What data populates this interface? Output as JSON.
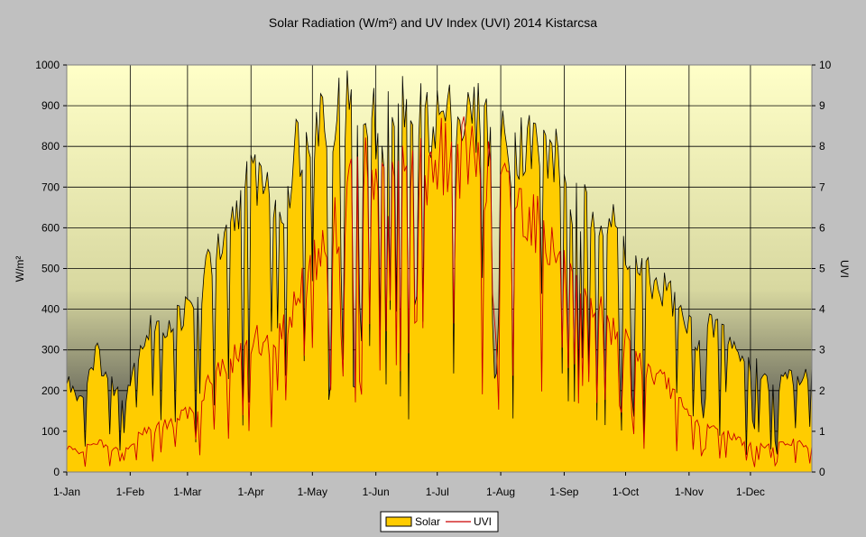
{
  "chart_data": {
    "type": "area",
    "title": "Solar Radiation (W/m²) and UV Index (UVI) 2014 Kistarcsa",
    "ylabel_left": "W/m²",
    "ylabel_right": "UVI",
    "xlabel": "",
    "ylim_left": [
      0,
      1000
    ],
    "ylim_right": [
      0,
      10
    ],
    "yticks_left": [
      "0",
      "100",
      "200",
      "300",
      "400",
      "500",
      "600",
      "700",
      "800",
      "900",
      "1000"
    ],
    "yticks_right": [
      "0",
      "1",
      "2",
      "3",
      "4",
      "5",
      "6",
      "7",
      "8",
      "9",
      "10"
    ],
    "x_day_range": [
      1,
      365
    ],
    "x_tick_days": [
      1,
      32,
      60,
      91,
      121,
      152,
      182,
      213,
      244,
      274,
      305,
      335
    ],
    "x_tick_labels": [
      "1-Jan",
      "1-Feb",
      "1-Mar",
      "1-Apr",
      "1-May",
      "1-Jun",
      "1-Jul",
      "1-Aug",
      "1-Sep",
      "1-Oct",
      "1-Nov",
      "1-Dec"
    ],
    "legend": [
      "Solar",
      "UVI"
    ],
    "colors": {
      "solar_fill": "#ffcc00",
      "solar_line": "#000000",
      "uvi_line": "#cc0000",
      "page_bg": "#c0c0c0",
      "plot_top": "#ffffc8",
      "plot_bottom": "#505040"
    },
    "series": [
      {
        "name": "Solar",
        "axis": "left",
        "x": [
          1,
          8,
          15,
          22,
          29,
          36,
          43,
          50,
          57,
          64,
          71,
          78,
          85,
          92,
          99,
          106,
          113,
          120,
          127,
          134,
          141,
          148,
          155,
          162,
          169,
          176,
          183,
          190,
          197,
          204,
          211,
          218,
          225,
          232,
          239,
          246,
          253,
          260,
          267,
          274,
          281,
          288,
          295,
          302,
          309,
          316,
          323,
          330,
          337,
          344,
          351,
          358,
          365
        ],
        "values": [
          240,
          200,
          320,
          240,
          190,
          330,
          390,
          390,
          420,
          430,
          560,
          580,
          700,
          790,
          780,
          690,
          860,
          920,
          950,
          960,
          970,
          940,
          880,
          970,
          960,
          920,
          940,
          930,
          930,
          930,
          880,
          850,
          870,
          860,
          840,
          720,
          680,
          700,
          650,
          600,
          530,
          490,
          480,
          400,
          360,
          380,
          380,
          300,
          280,
          230,
          240,
          260,
          260
        ]
      },
      {
        "name": "UVI",
        "axis": "right",
        "x": [
          1,
          8,
          15,
          22,
          29,
          36,
          43,
          50,
          57,
          64,
          71,
          78,
          85,
          92,
          99,
          106,
          113,
          120,
          127,
          134,
          141,
          148,
          155,
          162,
          169,
          176,
          183,
          190,
          197,
          204,
          211,
          218,
          225,
          232,
          239,
          246,
          253,
          260,
          267,
          274,
          281,
          288,
          295,
          302,
          309,
          316,
          323,
          330,
          337,
          344,
          351,
          358,
          365
        ],
        "values": [
          0.6,
          0.5,
          0.8,
          0.6,
          0.5,
          0.9,
          1.1,
          1.2,
          1.4,
          1.6,
          2.4,
          2.6,
          3.0,
          3.4,
          3.2,
          3.6,
          4.3,
          5.2,
          5.6,
          6.4,
          7.3,
          7.6,
          7.0,
          7.4,
          7.8,
          7.6,
          8.0,
          7.8,
          8.0,
          7.6,
          7.2,
          7.0,
          6.6,
          6.2,
          5.6,
          4.8,
          4.2,
          4.2,
          3.6,
          3.2,
          2.8,
          2.4,
          2.2,
          1.6,
          1.2,
          1.1,
          1.0,
          0.8,
          0.6,
          0.7,
          0.7,
          0.8,
          0.6
        ]
      }
    ]
  }
}
